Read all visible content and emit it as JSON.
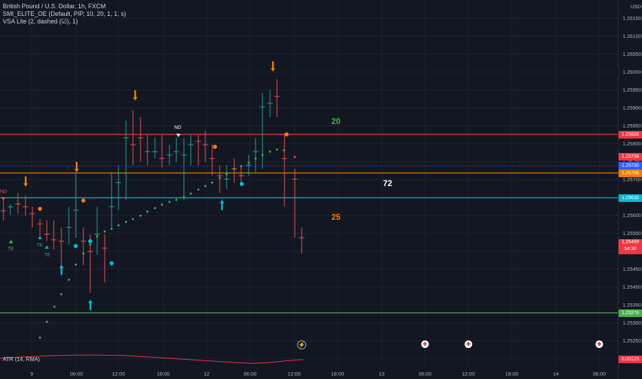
{
  "legend": {
    "symbol_line": "British Pound / U.S. Dollar, 1h, FXCM",
    "indicator1": "SMI_ELITE_OE (Default, PIP, 10, 20, 1, 1, s)",
    "indicator2": "VSA Lite (2, dashed (☑), 1)"
  },
  "currency": "USD",
  "price_labels": [
    "1.26150",
    "1.26100",
    "1.26050",
    "1.26000",
    "1.25950",
    "1.25900",
    "1.25850",
    "1.25800",
    "1.25750",
    "1.25700",
    "1.25650",
    "1.25600",
    "1.25550",
    "1.25500",
    "1.25450",
    "1.25400",
    "1.25350",
    "1.25300",
    "1.25250",
    "1.25200"
  ],
  "tags": {
    "resistance": "1.25826",
    "upper_red": "1.25758",
    "last_blue": "1.25730",
    "orange": "1.25706",
    "teal": "1.25630",
    "current": "1.25489",
    "countdown": "54:30",
    "support": "1.25270",
    "atr_value": "0.00129"
  },
  "stats": {
    "top": "20",
    "mid": "72",
    "bottom": "25"
  },
  "markers": {
    "nd_top": "ND",
    "nd_left": "ND",
    "te": "TE"
  },
  "atr_legend": "ATR (14, RMA)",
  "time_labels": [
    "9",
    "06:00",
    "12:00",
    "18:00",
    "12",
    "06:00",
    "12:00",
    "18:00",
    "13",
    "06:00",
    "12:00",
    "18:00",
    "14",
    "06:00"
  ],
  "colors": {
    "up": "#26a69a",
    "down": "#ef5350",
    "bg": "#131722",
    "orange": "#f57c00",
    "teal": "#00bcd4",
    "green": "#4caf50",
    "red": "#f23645"
  },
  "event_icons": [
    "lightning-icon",
    "flag-icon",
    "flag-icon",
    "flag-icon"
  ]
}
